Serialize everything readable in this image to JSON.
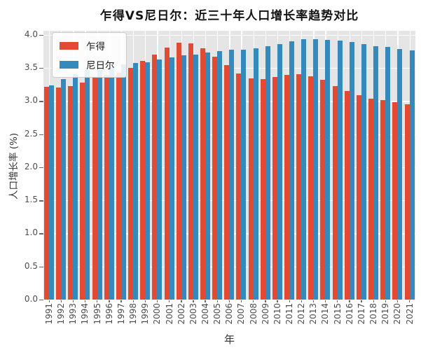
{
  "chart_data": {
    "type": "bar",
    "title": "乍得VS尼日尔：近三十年人口增长率趋势对比",
    "xlabel": "年",
    "ylabel": "人口增长率 (%)",
    "ylim": [
      0,
      4.06
    ],
    "yticks": [
      0,
      0.5,
      1,
      1.5,
      2,
      2.5,
      3,
      3.5,
      4
    ],
    "grid": true,
    "legend_position": "upper left",
    "plot_background": "#E5E5E5",
    "gridline_color": "#FFFFFF",
    "categories": [
      "1991",
      "1992",
      "1993",
      "1994",
      "1995",
      "1996",
      "1997",
      "1998",
      "1999",
      "2000",
      "2001",
      "2002",
      "2003",
      "2004",
      "2005",
      "2006",
      "2007",
      "2008",
      "2009",
      "2010",
      "2011",
      "2012",
      "2013",
      "2014",
      "2015",
      "2016",
      "2017",
      "2018",
      "2019",
      "2020",
      "2021"
    ],
    "series": [
      {
        "id": "chad",
        "name": "乍得",
        "color": "#E24A33",
        "values": [
          3.21,
          3.2,
          3.23,
          3.28,
          3.35,
          3.39,
          3.43,
          3.5,
          3.61,
          3.7,
          3.81,
          3.88,
          3.87,
          3.8,
          3.67,
          3.54,
          3.42,
          3.34,
          3.33,
          3.36,
          3.39,
          3.4,
          3.37,
          3.32,
          3.23,
          3.15,
          3.09,
          3.04,
          3.01,
          2.98,
          2.95
        ]
      },
      {
        "id": "niger",
        "name": "尼日尔",
        "color": "#348ABD",
        "values": [
          3.24,
          3.33,
          3.4,
          3.47,
          3.49,
          3.51,
          3.55,
          3.57,
          3.59,
          3.63,
          3.66,
          3.69,
          3.7,
          3.73,
          3.75,
          3.77,
          3.78,
          3.8,
          3.83,
          3.86,
          3.9,
          3.93,
          3.93,
          3.92,
          3.91,
          3.89,
          3.86,
          3.83,
          3.82,
          3.79,
          3.76
        ]
      }
    ]
  }
}
